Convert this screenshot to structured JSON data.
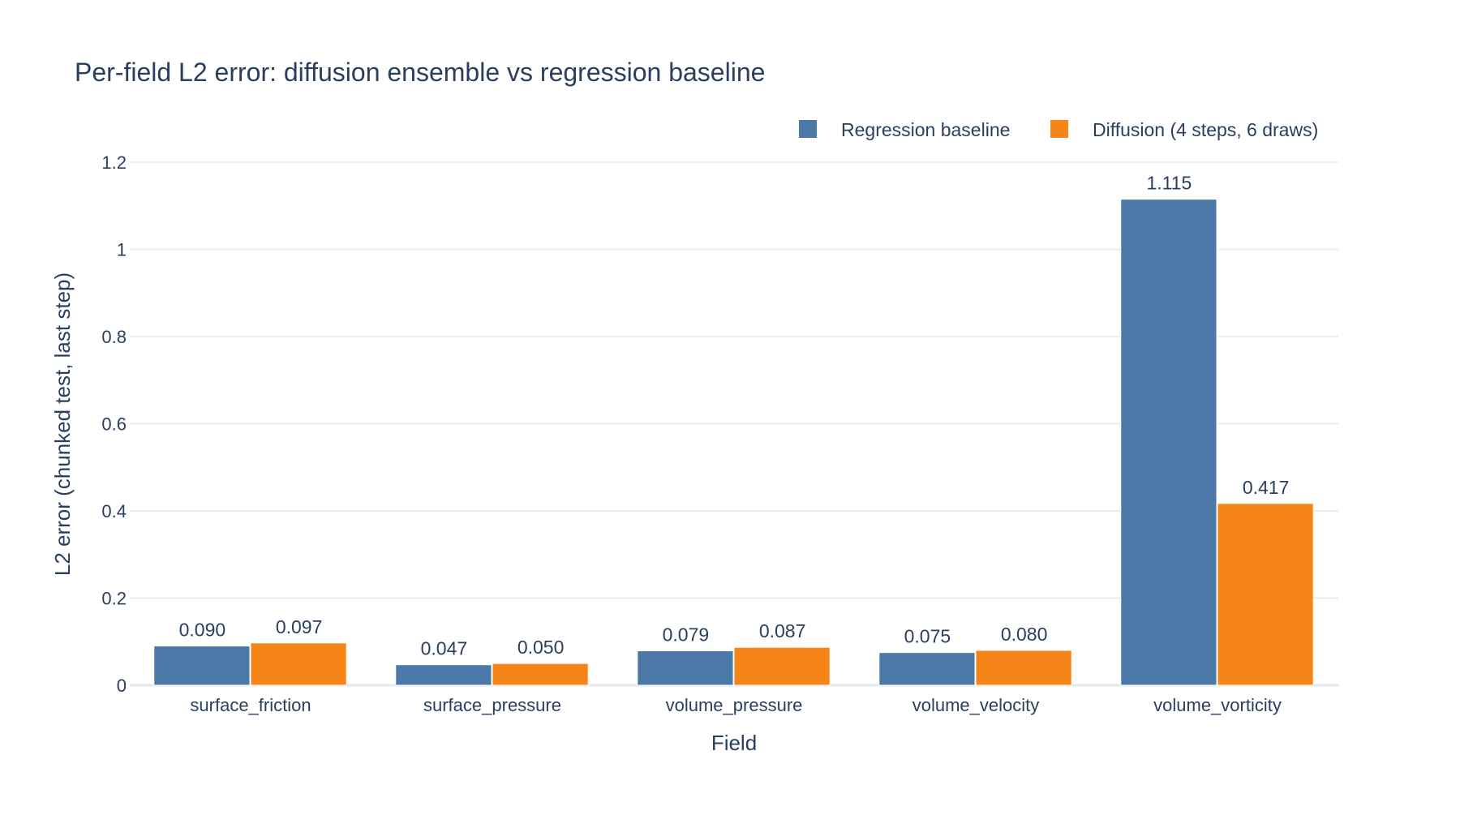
{
  "chart_data": {
    "type": "bar",
    "title": "Per-field L2 error: diffusion ensemble vs regression baseline",
    "xlabel": "Field",
    "ylabel": "L2 error (chunked test, last step)",
    "categories": [
      "surface_friction",
      "surface_pressure",
      "volume_pressure",
      "volume_velocity",
      "volume_vorticity"
    ],
    "series": [
      {
        "name": "Regression baseline",
        "color": "#4c78a8",
        "values": [
          0.09,
          0.047,
          0.079,
          0.075,
          1.115
        ],
        "labels": [
          "0.090",
          "0.047",
          "0.079",
          "0.075",
          "1.115"
        ]
      },
      {
        "name": "Diffusion (4 steps, 6 draws)",
        "color": "#f58518",
        "values": [
          0.097,
          0.05,
          0.087,
          0.08,
          0.417
        ],
        "labels": [
          "0.097",
          "0.050",
          "0.087",
          "0.080",
          "0.417"
        ]
      }
    ],
    "ylim": [
      0,
      1.2
    ],
    "yticks": [
      0,
      0.2,
      0.4,
      0.6,
      0.8,
      1,
      1.2
    ],
    "ytick_labels": [
      "0",
      "0.2",
      "0.4",
      "0.6",
      "0.8",
      "1",
      "1.2"
    ],
    "grid": true,
    "legend_position": "top-right"
  }
}
